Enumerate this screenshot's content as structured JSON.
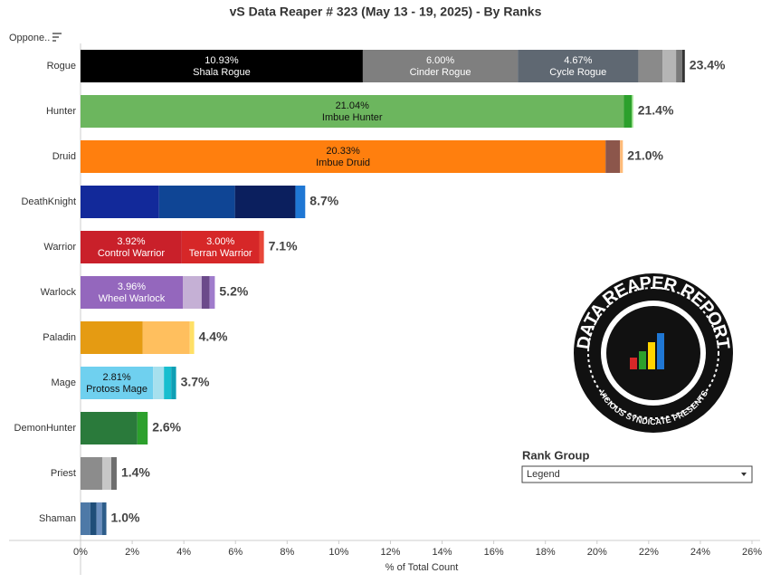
{
  "chart_data": {
    "type": "stacked_hbar",
    "title": "vS Data Reaper #  323 (May 13 - 19, 2025) - By Ranks",
    "row_header": "Oppone..",
    "xlabel": "% of Total Count",
    "xlim": [
      0,
      26
    ],
    "xticks": [
      {
        "value": 0,
        "label": "0%"
      },
      {
        "value": 2,
        "label": "2%"
      },
      {
        "value": 4,
        "label": "4%"
      },
      {
        "value": 6,
        "label": "6%"
      },
      {
        "value": 8,
        "label": "8%"
      },
      {
        "value": 10,
        "label": "10%"
      },
      {
        "value": 12,
        "label": "12%"
      },
      {
        "value": 14,
        "label": "14%"
      },
      {
        "value": 16,
        "label": "16%"
      },
      {
        "value": 18,
        "label": "18%"
      },
      {
        "value": 20,
        "label": "20%"
      },
      {
        "value": 22,
        "label": "22%"
      },
      {
        "value": 24,
        "label": "24%"
      },
      {
        "value": 26,
        "label": "26%"
      }
    ],
    "bars": [
      {
        "category": "Rogue",
        "total": 23.4,
        "total_label": "23.4%",
        "segments": [
          {
            "value": 10.93,
            "value_label": "10.93%",
            "name": "Shala Rogue",
            "color": "#000000"
          },
          {
            "value": 6.0,
            "value_label": "6.00%",
            "name": "Cinder Rogue",
            "color": "#7f7f7f"
          },
          {
            "value": 4.67,
            "value_label": "4.67%",
            "name": "Cycle Rogue",
            "color": "#5f6872"
          },
          {
            "value": 0.94,
            "color": "#8a8a8a"
          },
          {
            "value": 0.52,
            "color": "#b5b5b5"
          },
          {
            "value": 0.24,
            "color": "#7a7a7a"
          },
          {
            "value": 0.1,
            "color": "#333333"
          }
        ]
      },
      {
        "category": "Hunter",
        "total": 21.4,
        "total_label": "21.4%",
        "segments": [
          {
            "value": 21.04,
            "value_label": "21.04%",
            "name": "Imbue Hunter",
            "color": "#6cb65e"
          },
          {
            "value": 0.3,
            "color": "#2ca02c"
          },
          {
            "value": 0.06,
            "color": "#98df8a"
          }
        ]
      },
      {
        "category": "Druid",
        "total": 21.0,
        "total_label": "21.0%",
        "segments": [
          {
            "value": 20.33,
            "value_label": "20.33%",
            "name": "Imbue Druid",
            "color": "#ff7f0e"
          },
          {
            "value": 0.56,
            "color": "#8c564b"
          },
          {
            "value": 0.11,
            "color": "#ffbb78"
          }
        ]
      },
      {
        "category": "DeathKnight",
        "total": 8.7,
        "total_label": "8.7%",
        "segments": [
          {
            "value": 3.04,
            "color": "#12299a"
          },
          {
            "value": 2.94,
            "color": "#0f4595"
          },
          {
            "value": 2.34,
            "color": "#0b1f5e"
          },
          {
            "value": 0.38,
            "color": "#1f77d4"
          }
        ]
      },
      {
        "category": "Warrior",
        "total": 7.1,
        "total_label": "7.1%",
        "segments": [
          {
            "value": 3.92,
            "value_label": "3.92%",
            "name": "Control Warrior",
            "color": "#c9202a"
          },
          {
            "value": 3.0,
            "value_label": "3.00%",
            "name": "Terran Warrior",
            "color": "#d62728"
          },
          {
            "value": 0.18,
            "color": "#e8473a"
          }
        ]
      },
      {
        "category": "Warlock",
        "total": 5.2,
        "total_label": "5.2%",
        "segments": [
          {
            "value": 3.96,
            "value_label": "3.96%",
            "name": "Wheel Warlock",
            "color": "#9467bd"
          },
          {
            "value": 0.73,
            "color": "#c5b0d5"
          },
          {
            "value": 0.31,
            "color": "#6b4a8a"
          },
          {
            "value": 0.2,
            "color": "#a07ccc"
          }
        ]
      },
      {
        "category": "Paladin",
        "total": 4.4,
        "total_label": "4.4%",
        "segments": [
          {
            "value": 2.41,
            "color": "#e59b12"
          },
          {
            "value": 1.82,
            "color": "#ffbf5e"
          },
          {
            "value": 0.17,
            "color": "#ffe066"
          }
        ]
      },
      {
        "category": "Mage",
        "total": 3.7,
        "total_label": "3.7%",
        "segments": [
          {
            "value": 2.81,
            "value_label": "2.81%",
            "name": "Protoss Mage",
            "color": "#6fd0ef"
          },
          {
            "value": 0.42,
            "color": "#a6e0ee"
          },
          {
            "value": 0.28,
            "color": "#17becf"
          },
          {
            "value": 0.19,
            "color": "#0e9fb5"
          }
        ]
      },
      {
        "category": "DemonHunter",
        "total": 2.6,
        "total_label": "2.6%",
        "segments": [
          {
            "value": 2.2,
            "color": "#2a7a3b"
          },
          {
            "value": 0.4,
            "color": "#2ca02c"
          }
        ]
      },
      {
        "category": "Priest",
        "total": 1.4,
        "total_label": "1.4%",
        "segments": [
          {
            "value": 0.84,
            "color": "#8c8c8c"
          },
          {
            "value": 0.35,
            "color": "#c7c7c7"
          },
          {
            "value": 0.21,
            "color": "#6e6e6e"
          }
        ]
      },
      {
        "category": "Shaman",
        "total": 1.0,
        "total_label": "1.0%",
        "segments": [
          {
            "value": 0.38,
            "color": "#4e79a7"
          },
          {
            "value": 0.24,
            "color": "#1f4e79"
          },
          {
            "value": 0.21,
            "color": "#6b8fbf"
          },
          {
            "value": 0.17,
            "color": "#2d5d8a"
          }
        ]
      }
    ]
  },
  "filter": {
    "label": "Rank Group",
    "selected": "Legend"
  },
  "logo": {
    "title": "DATA REAPER REPORT",
    "subtitle": "VICIOUS SYNDICATE PRESENTS"
  }
}
